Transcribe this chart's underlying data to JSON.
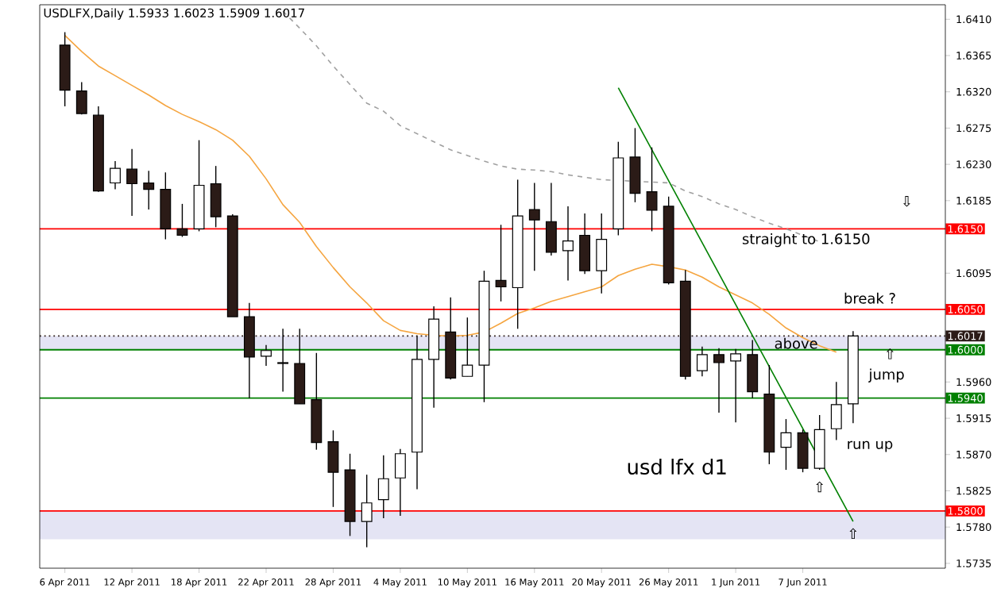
{
  "chart_data": {
    "type": "candlestick",
    "title": "USDLFX,Daily  1.5933 1.6023 1.5909 1.6017",
    "categories": [
      "6 Apr 2011",
      null,
      null,
      null,
      "12 Apr 2011",
      null,
      null,
      null,
      "18 Apr 2011",
      null,
      null,
      null,
      "22 Apr 2011",
      null,
      null,
      null,
      "28 Apr 2011",
      null,
      null,
      null,
      "4 May 2011",
      null,
      null,
      null,
      "10 May 2011",
      null,
      null,
      null,
      "16 May 2011",
      null,
      null,
      null,
      "20 May 2011",
      null,
      null,
      null,
      "26 May 2011",
      null,
      null,
      null,
      "1 Jun 2011",
      null,
      null,
      null,
      "7 Jun 2011",
      null,
      null,
      null
    ],
    "ohlc": [
      [
        1.6378,
        1.6394,
        1.6302,
        1.6322
      ],
      [
        1.6321,
        1.6332,
        1.6292,
        1.6293
      ],
      [
        1.6291,
        1.6302,
        1.6196,
        1.6197
      ],
      [
        1.6207,
        1.6234,
        1.6199,
        1.6225
      ],
      [
        1.6224,
        1.6249,
        1.6166,
        1.6206
      ],
      [
        1.6207,
        1.6222,
        1.6174,
        1.6199
      ],
      [
        1.6199,
        1.622,
        1.6137,
        1.615
      ],
      [
        1.615,
        1.6181,
        1.614,
        1.6142
      ],
      [
        1.615,
        1.626,
        1.6147,
        1.6204
      ],
      [
        1.6206,
        1.6228,
        1.6152,
        1.6165
      ],
      [
        1.6166,
        1.6168,
        1.6041,
        1.6041
      ],
      [
        1.6041,
        1.6058,
        1.594,
        1.5991
      ],
      [
        1.5992,
        1.6006,
        1.598,
        1.5999
      ],
      [
        1.5984,
        1.6026,
        1.5948,
        1.5983
      ],
      [
        1.5983,
        1.6026,
        1.5933,
        1.5933
      ],
      [
        1.5938,
        1.5996,
        1.5876,
        1.5885
      ],
      [
        1.5886,
        1.59,
        1.5805,
        1.5848
      ],
      [
        1.5851,
        1.5871,
        1.5769,
        1.5787
      ],
      [
        1.5787,
        1.5845,
        1.5755,
        1.581
      ],
      [
        1.5814,
        1.5869,
        1.5791,
        1.584
      ],
      [
        1.5841,
        1.5877,
        1.5794,
        1.5871
      ],
      [
        1.5873,
        1.6017,
        1.5827,
        1.5988
      ],
      [
        1.5988,
        1.6054,
        1.5928,
        1.6038
      ],
      [
        1.6022,
        1.6065,
        1.5963,
        1.5965
      ],
      [
        1.5967,
        1.604,
        1.5967,
        1.5981
      ],
      [
        1.5981,
        1.6098,
        1.5935,
        1.6085
      ],
      [
        1.6086,
        1.6155,
        1.606,
        1.6078
      ],
      [
        1.6077,
        1.6211,
        1.6026,
        1.6166
      ],
      [
        1.6174,
        1.6207,
        1.6098,
        1.6161
      ],
      [
        1.6159,
        1.6207,
        1.6117,
        1.6121
      ],
      [
        1.6123,
        1.6178,
        1.6086,
        1.6135
      ],
      [
        1.6142,
        1.6169,
        1.6094,
        1.6098
      ],
      [
        1.6098,
        1.6169,
        1.607,
        1.6137
      ],
      [
        1.615,
        1.6258,
        1.6142,
        1.6238
      ],
      [
        1.6239,
        1.6275,
        1.6183,
        1.6194
      ],
      [
        1.6196,
        1.6251,
        1.6147,
        1.6173
      ],
      [
        1.6178,
        1.619,
        1.6081,
        1.6083
      ],
      [
        1.6085,
        1.6099,
        1.5963,
        1.5967
      ],
      [
        1.5974,
        1.6004,
        1.5967,
        1.5994
      ],
      [
        1.5994,
        1.6002,
        1.5922,
        1.5984
      ],
      [
        1.5986,
        1.6001,
        1.591,
        1.5995
      ],
      [
        1.5994,
        1.6012,
        1.594,
        1.5948
      ],
      [
        1.5945,
        1.5981,
        1.5858,
        1.5873
      ],
      [
        1.5879,
        1.5914,
        1.5851,
        1.5897
      ],
      [
        1.5897,
        1.5901,
        1.5848,
        1.5853
      ],
      [
        1.5853,
        1.5919,
        1.5851,
        1.5901
      ],
      [
        1.5902,
        1.596,
        1.5888,
        1.5932
      ],
      [
        1.5933,
        1.6023,
        1.5909,
        1.6017
      ]
    ],
    "series": [
      {
        "type": "line",
        "color": "#f5a540",
        "values": [
          1.639,
          1.637,
          1.6352,
          1.634,
          1.6328,
          1.6316,
          1.6303,
          1.6292,
          1.6283,
          1.6273,
          1.626,
          1.624,
          1.6212,
          1.618,
          1.6158,
          1.6128,
          1.6102,
          1.6078,
          1.6058,
          1.6036,
          1.6024,
          1.602,
          1.6018,
          1.6017,
          1.6018,
          1.6022,
          1.6033,
          1.6045,
          1.6052,
          1.606,
          1.6066,
          1.6072,
          1.6078,
          1.6092,
          1.61,
          1.6106,
          1.6103,
          1.6099,
          1.609,
          1.6078,
          1.6068,
          1.6058,
          1.6044,
          1.6027,
          1.6015,
          1.6005,
          1.5997,
          null
        ]
      },
      {
        "type": "line",
        "color": "#a0a0a0",
        "line_style": "dashed",
        "values": [
          null,
          null,
          null,
          null,
          null,
          null,
          null,
          null,
          null,
          null,
          null,
          null,
          null,
          1.642,
          1.6399,
          1.6377,
          1.6352,
          1.6329,
          1.6306,
          1.6296,
          1.6278,
          1.6268,
          1.6258,
          1.6248,
          1.6241,
          1.6234,
          1.6228,
          1.6224,
          1.6223,
          1.6221,
          1.6217,
          1.6214,
          1.6211,
          1.621,
          1.6209,
          1.6208,
          1.6207,
          1.6197,
          1.619,
          1.6181,
          1.6174,
          1.6165,
          1.6157,
          1.615,
          1.6142,
          1.6134,
          null,
          null
        ]
      },
      {
        "type": "line",
        "color": "#008000",
        "values": [
          null,
          null,
          null,
          null,
          null,
          null,
          null,
          null,
          null,
          null,
          null,
          null,
          null,
          null,
          null,
          null,
          null,
          null,
          null,
          null,
          null,
          null,
          null,
          null,
          null,
          null,
          null,
          null,
          null,
          null,
          null,
          null,
          null,
          1.6325,
          null,
          null,
          null,
          null,
          null,
          null,
          null,
          null,
          null,
          null,
          null,
          null,
          null,
          1.5787
        ]
      }
    ],
    "ref_lines": [
      {
        "axis": "y",
        "value": 1.615,
        "label": "1.6150",
        "color": "#ff0000"
      },
      {
        "axis": "y",
        "value": 1.605,
        "label": "1.6050",
        "color": "#ff0000"
      },
      {
        "axis": "y",
        "value": 1.6017,
        "label": "1.6017",
        "color": "#2b1b17",
        "line_style": "dotted"
      },
      {
        "axis": "y",
        "value": 1.6,
        "label": "1.6000",
        "color": "#008000"
      },
      {
        "axis": "y",
        "value": 1.594,
        "label": "1.5940",
        "color": "#008000"
      },
      {
        "axis": "y",
        "value": 1.58,
        "label": "1.5800",
        "color": "#ff0000"
      }
    ],
    "bands": [
      {
        "axis": "y",
        "from": 1.5765,
        "to": 1.58,
        "color": "#e4e4f4"
      },
      {
        "axis": "y",
        "from": 1.6,
        "to": 1.6017,
        "color": "#e4e4f4"
      }
    ],
    "annotations": [
      "straight to 1.6150",
      "break ?",
      "above",
      "jump",
      "run up",
      "usd lfx d1",
      "⇩",
      "⇧",
      "⇧",
      "⇧"
    ],
    "ylim": [
      1.5729,
      1.6428
    ],
    "yticks": [
      {
        "value": 1.641,
        "label": "1.6410"
      },
      1.6365,
      {
        "value": 1.632,
        "label": "1.6320"
      },
      1.6275,
      {
        "value": 1.623,
        "label": "1.6230"
      },
      1.6185,
      1.6095,
      {
        "value": 1.596,
        "label": "1.5960"
      },
      1.5915,
      {
        "value": 1.587,
        "label": "1.5870"
      },
      1.5825,
      {
        "value": 1.578,
        "label": "1.5780"
      },
      1.5735
    ],
    "marker": "none"
  }
}
